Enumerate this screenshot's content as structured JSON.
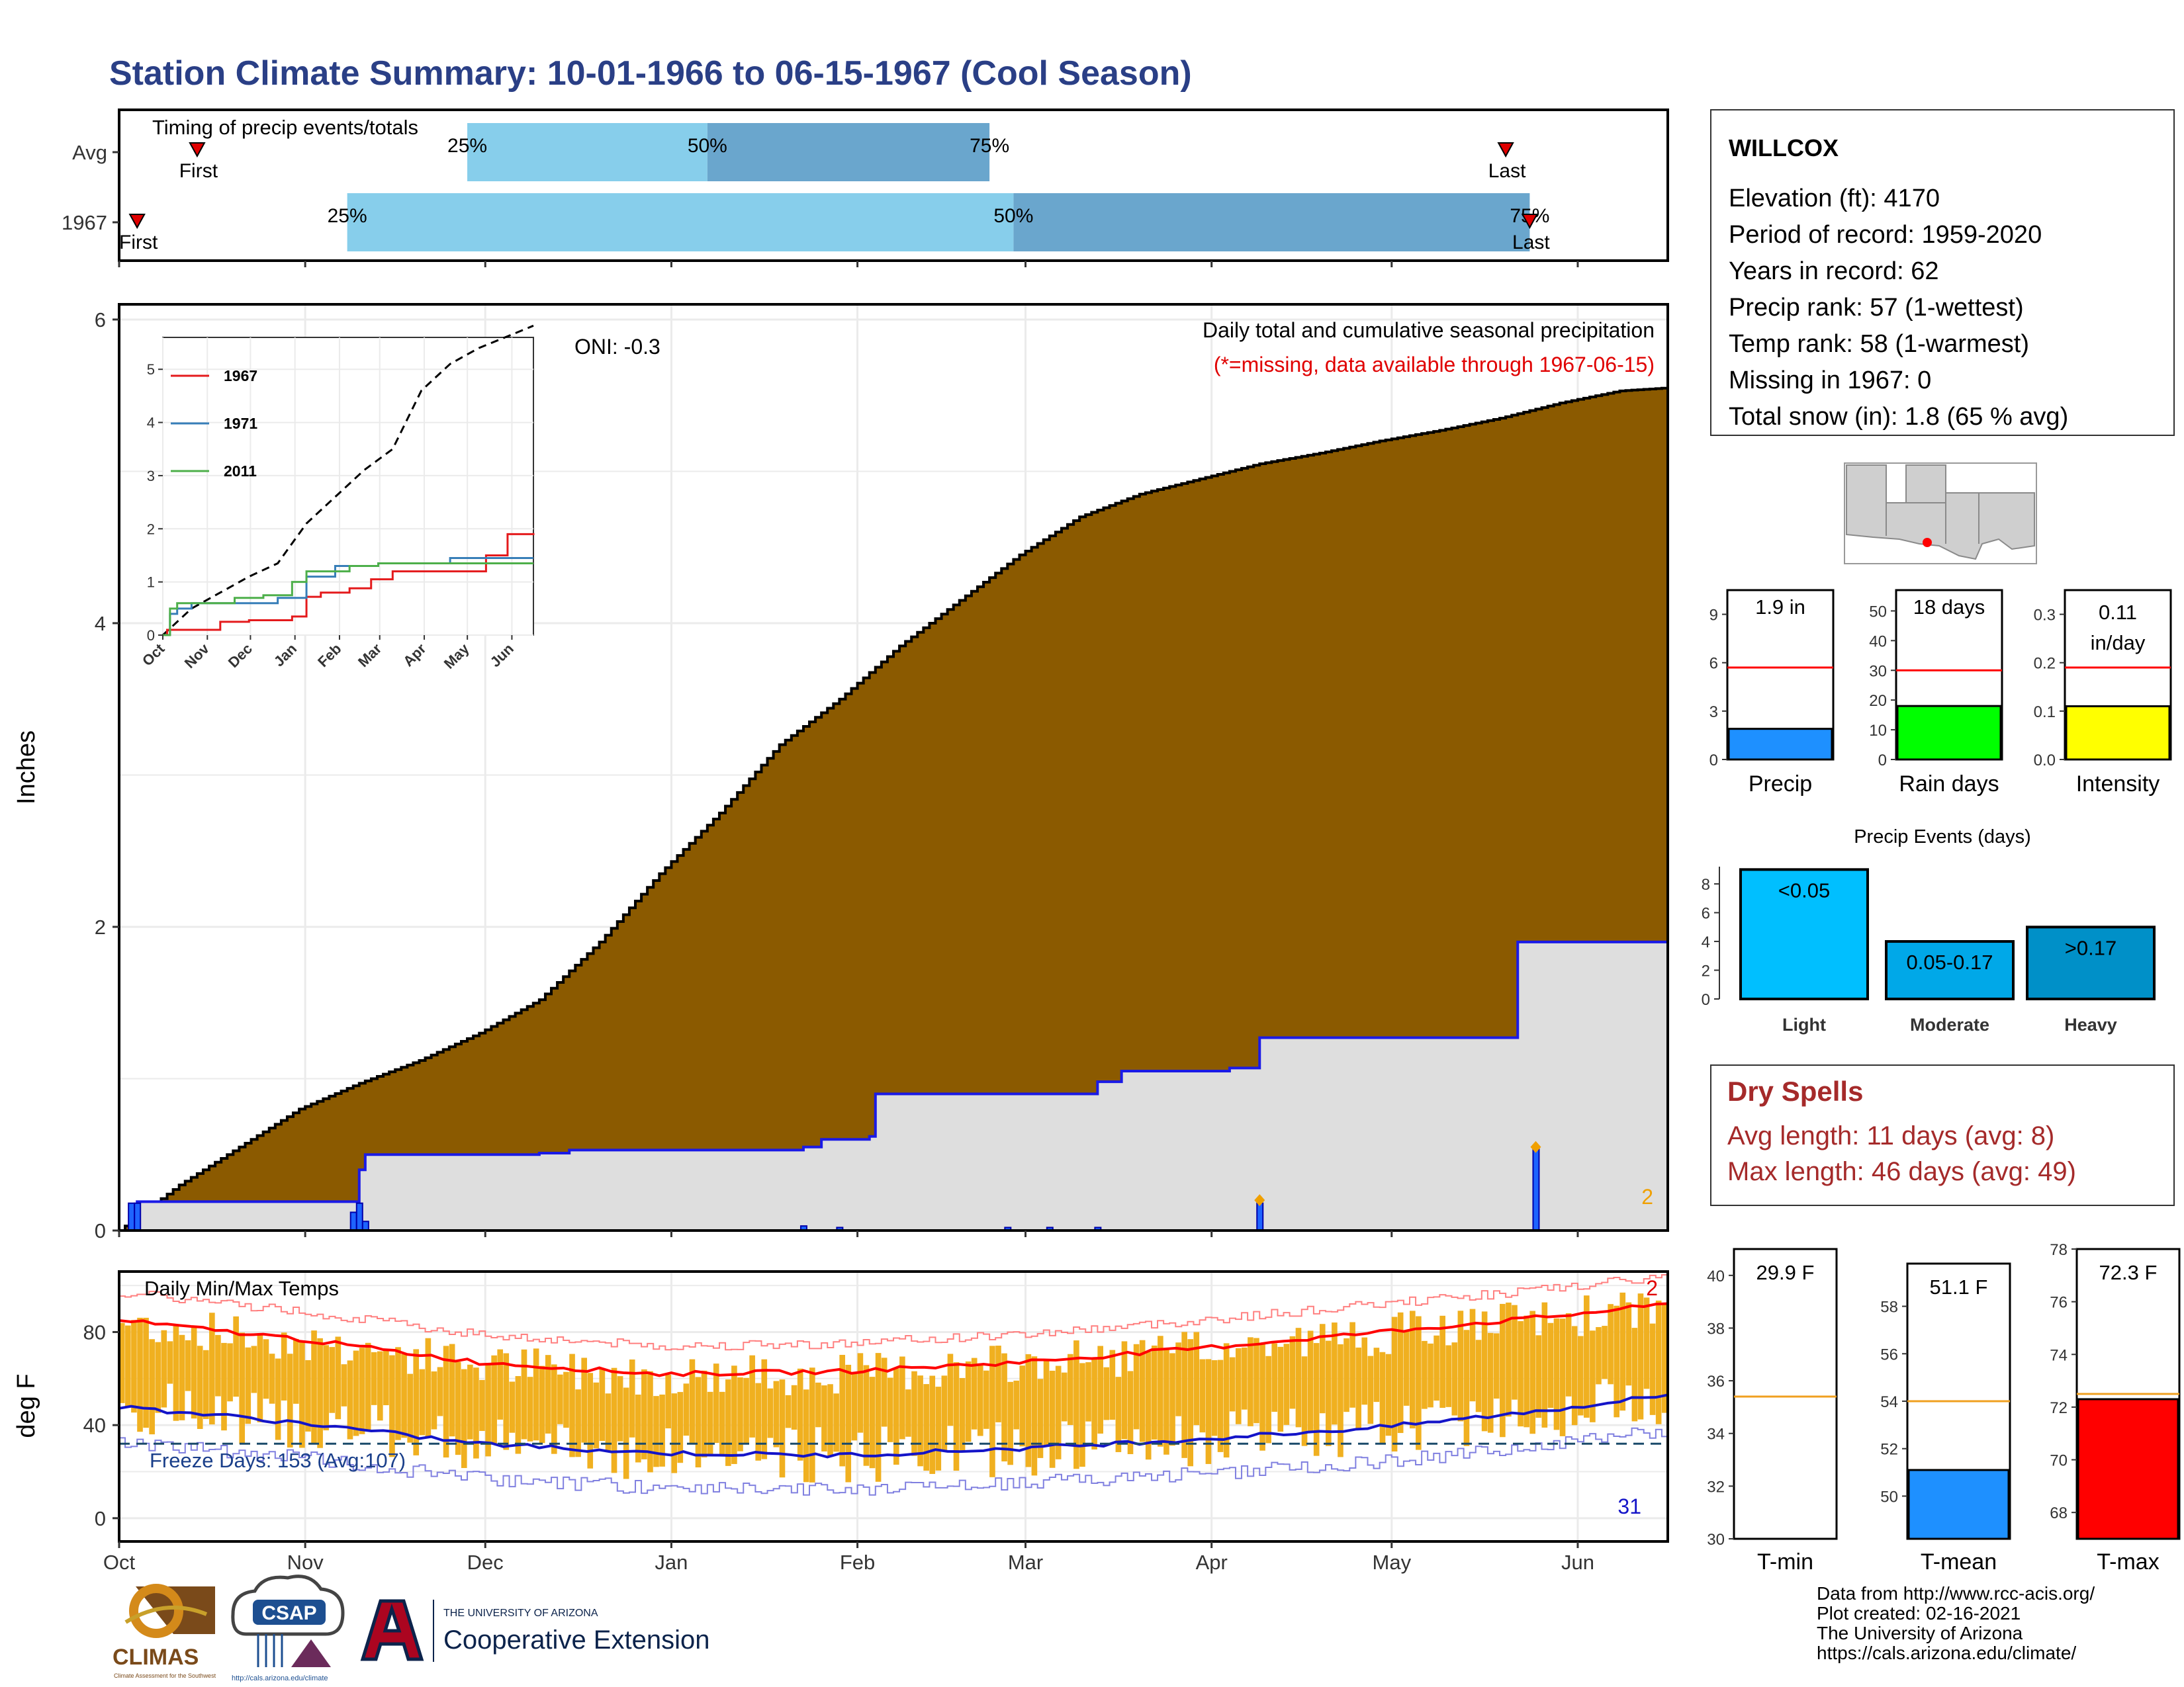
{
  "page": {
    "title": "Station Climate Summary: 10-01-1966 to 06-15-1967 (Cool Season)"
  },
  "colors": {
    "title": "#2a3f86",
    "precip_fill": "#8b5a00",
    "avg_fill": "#dedede",
    "avg_line": "#1a1ae6",
    "tile_light": "#87ceeb",
    "tile_dark": "#6aa6cd",
    "temp_bar": "#f0b020",
    "max_line": "#ff0000",
    "min_line": "#1414c8",
    "dry_spells": "#a52a2a",
    "inset_1967": "#e41a1c",
    "inset_1971": "#377eb8",
    "inset_2011": "#4daf4a"
  },
  "timing_panel": {
    "title": "Timing of precip events/totals",
    "rows": [
      {
        "label": "Avg",
        "first_label": "First",
        "last_label": "Last",
        "first_date": "1966-10-14",
        "last_date": "1967-05-20",
        "p25_date": "1966-11-28",
        "p50_date": "1967-01-07",
        "p75_date": "1967-02-23",
        "p25_label": "25%",
        "p50_label": "50%",
        "p75_label": "75%"
      },
      {
        "label": "1967",
        "first_label": "First",
        "last_label": "Last",
        "first_date": "1966-10-04",
        "last_date": "1967-05-24",
        "p25_date": "1966-11-08",
        "p50_date": "1967-02-27",
        "p75_date": "1967-05-24",
        "p25_label": "25%",
        "p50_label": "50%",
        "p75_label": "75%"
      }
    ]
  },
  "precip_panel": {
    "ylabel": "Inches",
    "yticks": [
      "0",
      "2",
      "4",
      "6"
    ],
    "ylim": [
      0,
      6.1
    ],
    "annotation": "Daily total and cumulative seasonal precipitation",
    "missing_note": "(*=missing, data available through 1967-06-15)",
    "oni": "ONI: -0.3",
    "count_label": "2"
  },
  "inset": {
    "yticks": [
      "0",
      "1",
      "2",
      "3",
      "4",
      "5"
    ],
    "months": [
      "Oct",
      "Nov",
      "Dec",
      "Jan",
      "Feb",
      "Mar",
      "Apr",
      "May",
      "Jun"
    ],
    "legend": [
      {
        "name": "1967",
        "color": "#e41a1c"
      },
      {
        "name": "1971",
        "color": "#377eb8"
      },
      {
        "name": "2011",
        "color": "#4daf4a"
      }
    ]
  },
  "temp_panel": {
    "title": "Daily Min/Max Temps",
    "ylabel": "deg F",
    "yticks": [
      "0",
      "40",
      "80"
    ],
    "ylim": [
      -10,
      106
    ],
    "freeze_label": "Freeze Days: 153 (Avg:107)",
    "count_max": "2",
    "count_min": "31"
  },
  "months_axis": [
    "Oct",
    "Nov",
    "Dec",
    "Jan",
    "Feb",
    "Mar",
    "Apr",
    "May",
    "Jun"
  ],
  "station": {
    "name": "WILLCOX",
    "lines": [
      "Elevation (ft): 4170",
      "Period of record: 1959-2020",
      "Years in record: 62",
      "Precip rank: 57 (1-wettest)",
      "Temp rank: 58 (1-warmest)",
      "Missing in 1967: 0",
      "Total snow (in): 1.8 (65 % avg)"
    ]
  },
  "mini_bars": [
    {
      "label": "Precip",
      "value_label": "1.9 in",
      "value": 1.9,
      "avg": 5.7,
      "ymax": 10.5,
      "ticks": [
        "0",
        "3",
        "6",
        "9"
      ],
      "tick_values": [
        0,
        3,
        6,
        9
      ],
      "color": "#1e90ff"
    },
    {
      "label": "Rain days",
      "value_label": "18 days",
      "value": 18,
      "avg": 30,
      "ymax": 57,
      "ticks": [
        "0",
        "10",
        "20",
        "30",
        "40",
        "50"
      ],
      "tick_values": [
        0,
        10,
        20,
        30,
        40,
        50
      ],
      "color": "#00ff00"
    },
    {
      "label": "Intensity",
      "value_label": "0.11 in/day",
      "value_line1": "0.11",
      "value_line2": "in/day",
      "value": 0.11,
      "avg": 0.19,
      "ymax": 0.35,
      "ticks": [
        "0.0",
        "0.1",
        "0.2",
        "0.3"
      ],
      "tick_values": [
        0,
        0.1,
        0.2,
        0.3
      ],
      "color": "#ffff00"
    }
  ],
  "precip_events": {
    "title": "Precip Events (days)",
    "ticks": [
      "0",
      "2",
      "4",
      "6",
      "8"
    ],
    "tick_values": [
      0,
      2,
      4,
      6,
      8
    ],
    "ymax": 9.2,
    "bars": [
      {
        "category": "Light",
        "label": "<0.05",
        "value": 9,
        "color": "#00bfff"
      },
      {
        "category": "Moderate",
        "label": "0.05-0.17",
        "value": 4,
        "color": "#00a8e8"
      },
      {
        "category": "Heavy",
        "label": ">0.17",
        "value": 5,
        "color": "#0090c8"
      }
    ]
  },
  "dry_spells": {
    "title": "Dry Spells",
    "avg_line": "Avg length: 11 days (avg: 8)",
    "max_line": "Max length: 46 days (avg: 49)"
  },
  "temp_bars": [
    {
      "label": "T-min",
      "value_label": "29.9 F",
      "value": 29.9,
      "avg": 35.4,
      "ymin": 30,
      "ymax": 41,
      "ticks": [
        "30",
        "32",
        "34",
        "36",
        "38",
        "40"
      ],
      "tick_values": [
        30,
        32,
        34,
        36,
        38,
        40
      ],
      "color": "#1e90ff"
    },
    {
      "label": "T-mean",
      "value_label": "51.1 F",
      "value": 51.1,
      "avg": 54.0,
      "ymin": 48.2,
      "ymax": 59.8,
      "ticks": [
        "50",
        "52",
        "54",
        "56",
        "58"
      ],
      "tick_values": [
        50,
        52,
        54,
        56,
        58
      ],
      "color": "#1e90ff"
    },
    {
      "label": "T-max",
      "value_label": "72.3 F",
      "value": 72.3,
      "avg": 72.5,
      "ymin": 67,
      "ymax": 78,
      "ticks": [
        "68",
        "70",
        "72",
        "74",
        "76",
        "78"
      ],
      "tick_values": [
        68,
        70,
        72,
        74,
        76,
        78
      ],
      "color": "#ff0000"
    }
  ],
  "credits": [
    "Data from http://www.rcc-acis.org/",
    "Plot created: 02-16-2021",
    "The University of Arizona",
    "https://cals.arizona.edu/climate/"
  ],
  "logos": {
    "climas": "CLIMAS",
    "climas_sub": "Climate Assessment for the Southwest",
    "csap": "CSAP",
    "csap_url": "http://cals.arizona.edu/climate",
    "ua_line1": "THE UNIVERSITY OF ARIZONA",
    "ua_line2": "Cooperative Extension"
  },
  "chart_data": [
    {
      "type": "area",
      "name": "cumulative-precip",
      "x_units": "day of season (0 = Oct 1)",
      "x": [
        0,
        10,
        20,
        30,
        40,
        50,
        60,
        70,
        80,
        90,
        100,
        110,
        120,
        130,
        140,
        150,
        160,
        170,
        180,
        190,
        200,
        210,
        220,
        230,
        240,
        250,
        258
      ],
      "cumulative_total_in": [
        0.0,
        0.3,
        0.55,
        0.8,
        0.97,
        1.12,
        1.3,
        1.52,
        1.9,
        2.35,
        2.75,
        3.2,
        3.5,
        3.85,
        4.15,
        4.45,
        4.7,
        4.85,
        4.95,
        5.05,
        5.12,
        5.2,
        5.27,
        5.35,
        5.45,
        5.53,
        5.55
      ],
      "avg_cumulative_x": [
        0,
        3,
        39,
        40,
        41,
        70,
        75,
        114,
        117,
        125,
        126,
        163,
        167,
        185,
        190,
        230,
        233,
        258
      ],
      "avg_cumulative_in": [
        0.0,
        0.19,
        0.19,
        0.4,
        0.5,
        0.51,
        0.53,
        0.55,
        0.6,
        0.62,
        0.9,
        0.98,
        1.05,
        1.07,
        1.27,
        1.27,
        1.9,
        1.92
      ],
      "daily_bars_x": [
        2,
        3,
        39,
        40,
        41,
        114,
        120,
        148,
        155,
        163,
        190,
        236
      ],
      "daily_bars_in": [
        0.18,
        0.18,
        0.12,
        0.18,
        0.06,
        0.03,
        0.02,
        0.02,
        0.02,
        0.02,
        0.18,
        0.55
      ],
      "xlim": [
        0,
        258
      ],
      "ylim": [
        0,
        6.1
      ]
    },
    {
      "type": "bar",
      "name": "daily-temps",
      "x_units": "day of season (0 = Oct 1)",
      "ylabel": "deg F",
      "ylim": [
        -10,
        106
      ],
      "avg_max_x": [
        0,
        30,
        60,
        90,
        120,
        150,
        180,
        210,
        240,
        258
      ],
      "avg_max_f": [
        85,
        77,
        67,
        62,
        63,
        67,
        73,
        80,
        87,
        92
      ],
      "avg_min_x": [
        0,
        30,
        60,
        90,
        120,
        150,
        180,
        210,
        240,
        258
      ],
      "avg_min_f": [
        48,
        41,
        32,
        28,
        27,
        30,
        34,
        39,
        47,
        53
      ],
      "freeze_threshold_f": 32
    },
    {
      "type": "line",
      "name": "inset-cumulative-comparison",
      "x_units": "day of season (0 = Oct 1)",
      "ylim": [
        0,
        5.6
      ],
      "series": [
        {
          "name": "",
          "x": [
            0,
            20,
            40,
            60,
            80,
            100,
            120,
            140,
            160,
            180,
            200,
            220,
            240,
            258
          ],
          "values": [
            0.0,
            0.5,
            0.8,
            1.1,
            1.35,
            2.1,
            2.6,
            3.1,
            3.5,
            4.6,
            5.1,
            5.4,
            5.62,
            5.82
          ],
          "style": "dashed"
        },
        {
          "name": "1967",
          "x": [
            0,
            2,
            3,
            30,
            40,
            60,
            90,
            100,
            110,
            130,
            145,
            160,
            175,
            210,
            225,
            240,
            258
          ],
          "values": [
            0.0,
            0.0,
            0.1,
            0.1,
            0.25,
            0.28,
            0.35,
            0.72,
            0.8,
            0.88,
            1.05,
            1.2,
            1.2,
            1.2,
            1.5,
            1.9,
            1.92
          ],
          "color": "#e41a1c"
        },
        {
          "name": "1971",
          "x": [
            0,
            5,
            10,
            20,
            60,
            80,
            100,
            120,
            150,
            200,
            258
          ],
          "values": [
            0.0,
            0.4,
            0.5,
            0.6,
            0.6,
            0.7,
            1.1,
            1.3,
            1.35,
            1.45,
            1.45
          ],
          "color": "#377eb8"
        },
        {
          "name": "2011",
          "x": [
            0,
            5,
            10,
            50,
            70,
            90,
            100,
            130,
            150,
            180,
            258
          ],
          "values": [
            0.0,
            0.5,
            0.6,
            0.7,
            0.75,
            1.0,
            1.2,
            1.3,
            1.35,
            1.35,
            1.35
          ],
          "color": "#4daf4a"
        }
      ]
    }
  ]
}
